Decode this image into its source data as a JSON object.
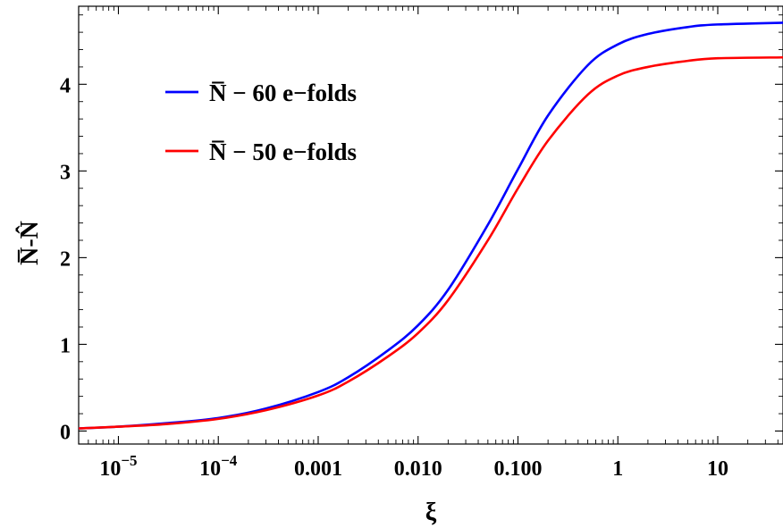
{
  "chart_data": {
    "type": "line",
    "xscale": "log",
    "xlim": [
      4e-06,
      45
    ],
    "ylim": [
      -0.15,
      4.9
    ],
    "xlabel": "ξ",
    "ylabel": "N̅-N̂",
    "xticks": [
      {
        "value": 1e-05,
        "label": "10",
        "exp": "−5"
      },
      {
        "value": 0.0001,
        "label": "10",
        "exp": "−4"
      },
      {
        "value": 0.001,
        "label": "0.001",
        "exp": ""
      },
      {
        "value": 0.01,
        "label": "0.010",
        "exp": ""
      },
      {
        "value": 0.1,
        "label": "0.100",
        "exp": ""
      },
      {
        "value": 1,
        "label": "1",
        "exp": ""
      },
      {
        "value": 10,
        "label": "10",
        "exp": ""
      }
    ],
    "yticks": [
      {
        "value": 0,
        "label": "0"
      },
      {
        "value": 1,
        "label": "1"
      },
      {
        "value": 2,
        "label": "2"
      },
      {
        "value": 3,
        "label": "3"
      },
      {
        "value": 4,
        "label": "4"
      }
    ],
    "legend_position": "top-left",
    "series": [
      {
        "name": "N̅ − 60 e−folds",
        "color": "#0000ff",
        "x": [
          4e-06,
          1e-05,
          3e-05,
          0.0001,
          0.0003,
          0.001,
          0.002,
          0.005,
          0.01,
          0.02,
          0.05,
          0.1,
          0.2,
          0.5,
          1,
          2,
          5,
          10,
          45
        ],
        "y": [
          0.03,
          0.05,
          0.09,
          0.15,
          0.26,
          0.45,
          0.62,
          0.93,
          1.22,
          1.63,
          2.38,
          3.02,
          3.64,
          4.22,
          4.46,
          4.58,
          4.66,
          4.69,
          4.71
        ]
      },
      {
        "name": "N̅ − 50 e−folds",
        "color": "#ff0000",
        "x": [
          4e-06,
          1e-05,
          3e-05,
          0.0001,
          0.0003,
          0.001,
          0.002,
          0.005,
          0.01,
          0.02,
          0.05,
          0.1,
          0.2,
          0.5,
          1,
          2,
          5,
          10,
          45
        ],
        "y": [
          0.03,
          0.05,
          0.08,
          0.14,
          0.24,
          0.41,
          0.57,
          0.86,
          1.13,
          1.51,
          2.2,
          2.8,
          3.35,
          3.88,
          4.1,
          4.2,
          4.27,
          4.3,
          4.31
        ]
      }
    ]
  }
}
